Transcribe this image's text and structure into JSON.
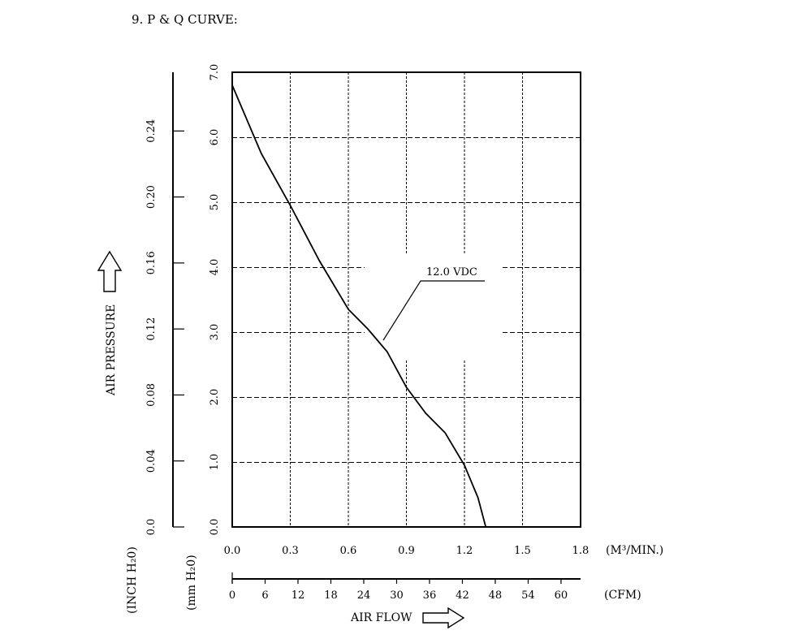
{
  "heading": "9. P & Q CURVE:",
  "chart_data": {
    "type": "line",
    "title": "",
    "ylabel": "AIR PRESSURE",
    "xlabel": "AIR FLOW",
    "x_axis_cmm": {
      "unit": "(M³/MIN.)",
      "range": [
        0,
        1.8
      ],
      "ticks": [
        "0.0",
        "0.3",
        "0.6",
        "0.9",
        "1.2",
        "1.5",
        "1.8"
      ]
    },
    "x_axis_cfm": {
      "unit": "(CFM)",
      "ticks": [
        "0",
        "6",
        "12",
        "18",
        "24",
        "30",
        "36",
        "42",
        "48",
        "54",
        "60"
      ]
    },
    "y_axis_mmh2o": {
      "unit": "(mm H₂0)",
      "range": [
        0,
        7
      ],
      "ticks": [
        "0.0",
        "1.0",
        "2.0",
        "3.0",
        "4.0",
        "5.0",
        "6.0",
        "7.0"
      ]
    },
    "y_axis_inh2o": {
      "unit": "(INCH H₂0)",
      "ticks": [
        "0.0",
        "0.04",
        "0.08",
        "0.12",
        "0.16",
        "0.20",
        "0.24"
      ]
    },
    "grid": true,
    "series": [
      {
        "name": "12.0 VDC",
        "x": [
          0.0,
          0.15,
          0.3,
          0.45,
          0.6,
          0.7,
          0.8,
          0.9,
          1.0,
          1.1,
          1.2,
          1.27,
          1.31
        ],
        "y": [
          6.8,
          5.75,
          4.95,
          4.1,
          3.35,
          3.05,
          2.7,
          2.15,
          1.75,
          1.45,
          0.95,
          0.45,
          0.0
        ]
      }
    ],
    "annotations": [
      {
        "text": "12.0 VDC",
        "points_to_series": "12.0 VDC"
      }
    ]
  }
}
